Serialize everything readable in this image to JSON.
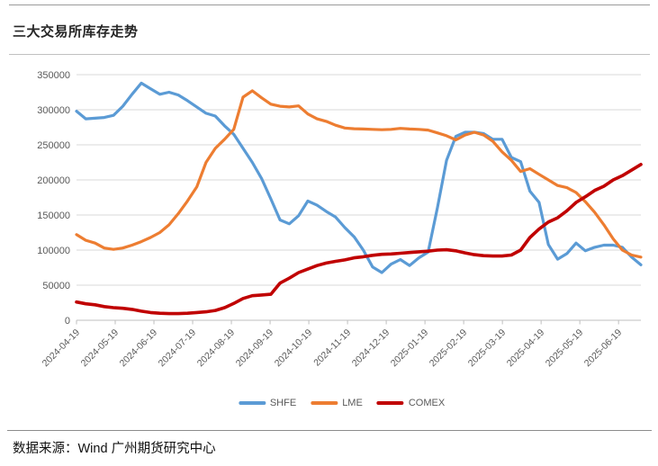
{
  "title": "三大交易所库存走势",
  "source_note": "数据来源：Wind 广州期货研究中心",
  "colors": {
    "shfe": "#5B9BD5",
    "lme": "#ED7D31",
    "comex": "#C00000",
    "gridline": "#D9D9D9",
    "axis": "#BFBFBF",
    "axis_label": "#595959"
  },
  "chart_data": {
    "type": "line",
    "title": "三大交易所库存走势",
    "xlabel": "",
    "ylabel": "",
    "ylim": [
      0,
      350000
    ],
    "grid": true,
    "legend_position": "bottom",
    "x_unit": "weekly points from 2024-04-19 to 2025-06",
    "y_ticks": [
      0,
      50000,
      100000,
      150000,
      200000,
      250000,
      300000,
      350000
    ],
    "x_tick_labels": [
      "2024-04-19",
      "2024-05-19",
      "2024-06-19",
      "2024-07-19",
      "2024-08-19",
      "2024-09-19",
      "2024-10-19",
      "2024-11-19",
      "2024-12-19",
      "2025-01-19",
      "2025-02-19",
      "2025-03-19",
      "2025-04-19",
      "2025-05-19",
      "2025-06-19"
    ],
    "series": [
      {
        "name": "SHFE",
        "color": "#5B9BD5",
        "values": [
          298000,
          287000,
          288000,
          289000,
          292000,
          305000,
          322000,
          338000,
          330000,
          322000,
          325000,
          321000,
          313000,
          304000,
          295000,
          291000,
          277000,
          265000,
          245000,
          225000,
          202000,
          173000,
          143000,
          137500,
          149000,
          170000,
          164000,
          155000,
          147000,
          132000,
          119000,
          100000,
          76000,
          68000,
          80000,
          86500,
          78000,
          89000,
          97000,
          160000,
          228000,
          262000,
          268000,
          268000,
          266000,
          258000,
          258000,
          232000,
          226000,
          184000,
          168000,
          108000,
          87000,
          95000,
          110000,
          99000,
          104000,
          107000,
          107000,
          104000,
          90000,
          79000
        ]
      },
      {
        "name": "LME",
        "color": "#ED7D31",
        "values": [
          122000,
          114000,
          110000,
          103000,
          101000,
          103000,
          107000,
          112000,
          118000,
          125000,
          136000,
          152000,
          170000,
          190000,
          225000,
          245000,
          258000,
          272000,
          318000,
          327000,
          317000,
          308000,
          305000,
          304000,
          305500,
          294000,
          287000,
          283500,
          278000,
          274000,
          273000,
          272500,
          272000,
          271500,
          272000,
          273500,
          272500,
          272000,
          271000,
          267000,
          263000,
          257000,
          264000,
          268000,
          264000,
          255000,
          240000,
          228000,
          212000,
          216000,
          208000,
          200000,
          192000,
          189000,
          182000,
          169000,
          154000,
          136000,
          116000,
          100000,
          93000,
          90000
        ]
      },
      {
        "name": "COMEX",
        "color": "#C00000",
        "values": [
          26000,
          23500,
          22000,
          19500,
          18000,
          17000,
          15500,
          13000,
          11000,
          10000,
          9500,
          9500,
          10000,
          11000,
          12000,
          14000,
          18000,
          24000,
          31000,
          35000,
          36000,
          37000,
          53000,
          60000,
          68000,
          73000,
          78000,
          81500,
          84000,
          86000,
          89000,
          90500,
          92500,
          94000,
          94500,
          95500,
          96500,
          97500,
          98500,
          100000,
          100500,
          99000,
          96000,
          93500,
          92000,
          91500,
          91500,
          93000,
          100000,
          118000,
          130000,
          140000,
          146000,
          156000,
          168000,
          176000,
          185000,
          191000,
          200000,
          206000,
          214000,
          222000
        ]
      }
    ]
  }
}
